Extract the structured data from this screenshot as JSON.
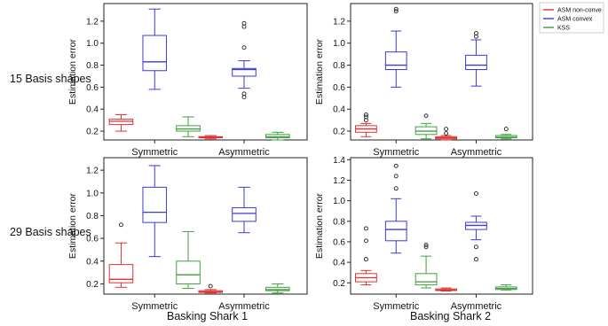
{
  "row_labels": [
    "15 Basis shapes",
    "29 Basis shapes"
  ],
  "col_labels": [
    "Basking Shark 1",
    "Basking Shark 2"
  ],
  "legend": [
    {
      "name": "ASM non-conve",
      "color": "#e03131"
    },
    {
      "name": "ASM convex",
      "color": "#3b3bd6"
    },
    {
      "name": "KSS",
      "color": "#40a040"
    }
  ],
  "chart_data": [
    {
      "type": "box",
      "panel": "15 Basis shapes / Basking Shark 1",
      "ylabel": "Estimation error",
      "ylim": [
        0.12,
        1.36
      ],
      "yticks": [
        "0.2",
        "0.4",
        "0.6",
        "0.8",
        "1.0",
        "1.2"
      ],
      "categories": [
        "Symmetric",
        "Asymmetric"
      ],
      "series": [
        {
          "name": "ASM non-conve",
          "boxes": [
            {
              "whislo": 0.2,
              "q1": 0.26,
              "med": 0.29,
              "q3": 0.31,
              "whishi": 0.35,
              "fliers": []
            },
            {
              "whislo": 0.13,
              "q1": 0.14,
              "med": 0.145,
              "q3": 0.15,
              "whishi": 0.16,
              "fliers": []
            }
          ]
        },
        {
          "name": "ASM convex",
          "boxes": [
            {
              "whislo": 0.58,
              "q1": 0.75,
              "med": 0.83,
              "q3": 1.07,
              "whishi": 1.31,
              "fliers": []
            },
            {
              "whislo": 0.59,
              "q1": 0.7,
              "med": 0.76,
              "q3": 0.77,
              "whishi": 0.84,
              "fliers": [
                0.51,
                0.54,
                0.96,
                1.15,
                1.18
              ]
            }
          ]
        },
        {
          "name": "KSS",
          "boxes": [
            {
              "whislo": 0.15,
              "q1": 0.2,
              "med": 0.22,
              "q3": 0.25,
              "whishi": 0.33,
              "fliers": []
            },
            {
              "whislo": 0.12,
              "q1": 0.14,
              "med": 0.15,
              "q3": 0.17,
              "whishi": 0.19,
              "fliers": []
            }
          ]
        }
      ]
    },
    {
      "type": "box",
      "panel": "15 Basis shapes / Basking Shark 2",
      "ylabel": "Estimation error",
      "ylim": [
        0.12,
        1.36
      ],
      "yticks": [
        "0.2",
        "0.4",
        "0.6",
        "0.8",
        "1.0",
        "1.2"
      ],
      "categories": [
        "Symmetric",
        "Asymmetric"
      ],
      "series": [
        {
          "name": "ASM non-conve",
          "boxes": [
            {
              "whislo": 0.15,
              "q1": 0.19,
              "med": 0.22,
              "q3": 0.25,
              "whishi": 0.27,
              "fliers": [
                0.3,
                0.33,
                0.35
              ]
            },
            {
              "whislo": 0.12,
              "q1": 0.13,
              "med": 0.14,
              "q3": 0.15,
              "whishi": 0.16,
              "fliers": [
                0.18,
                0.22
              ]
            }
          ]
        },
        {
          "name": "ASM convex",
          "boxes": [
            {
              "whislo": 0.6,
              "q1": 0.76,
              "med": 0.8,
              "q3": 0.92,
              "whishi": 1.11,
              "fliers": [
                1.29,
                1.31
              ]
            },
            {
              "whislo": 0.61,
              "q1": 0.76,
              "med": 0.8,
              "q3": 0.89,
              "whishi": 1.03,
              "fliers": [
                1.06,
                1.09
              ]
            }
          ]
        },
        {
          "name": "KSS",
          "boxes": [
            {
              "whislo": 0.13,
              "q1": 0.17,
              "med": 0.2,
              "q3": 0.24,
              "whishi": 0.27,
              "fliers": [
                0.34
              ]
            },
            {
              "whislo": 0.13,
              "q1": 0.14,
              "med": 0.145,
              "q3": 0.16,
              "whishi": 0.17,
              "fliers": [
                0.22
              ]
            }
          ]
        }
      ]
    },
    {
      "type": "box",
      "panel": "29 Basis shapes / Basking Shark 1",
      "ylabel": "Estimation error",
      "ylim": [
        0.11,
        1.31
      ],
      "yticks": [
        "0.2",
        "0.4",
        "0.6",
        "0.8",
        "1.0",
        "1.2"
      ],
      "categories": [
        "Symmetric",
        "Asymmetric"
      ],
      "series": [
        {
          "name": "ASM non-conve",
          "boxes": [
            {
              "whislo": 0.17,
              "q1": 0.21,
              "med": 0.24,
              "q3": 0.37,
              "whishi": 0.56,
              "fliers": [
                0.72
              ]
            },
            {
              "whislo": 0.12,
              "q1": 0.125,
              "med": 0.13,
              "q3": 0.14,
              "whishi": 0.15,
              "fliers": [
                0.18
              ]
            }
          ]
        },
        {
          "name": "ASM convex",
          "boxes": [
            {
              "whislo": 0.44,
              "q1": 0.74,
              "med": 0.83,
              "q3": 1.05,
              "whishi": 1.24,
              "fliers": []
            },
            {
              "whislo": 0.65,
              "q1": 0.75,
              "med": 0.82,
              "q3": 0.87,
              "whishi": 1.05,
              "fliers": []
            }
          ]
        },
        {
          "name": "KSS",
          "boxes": [
            {
              "whislo": 0.16,
              "q1": 0.2,
              "med": 0.28,
              "q3": 0.4,
              "whishi": 0.66,
              "fliers": []
            },
            {
              "whislo": 0.12,
              "q1": 0.14,
              "med": 0.15,
              "q3": 0.17,
              "whishi": 0.2,
              "fliers": []
            }
          ]
        }
      ]
    },
    {
      "type": "box",
      "panel": "29 Basis shapes / Basking Shark 2",
      "ylabel": "Estimation error",
      "ylim": [
        0.09,
        1.42
      ],
      "yticks": [
        "0.2",
        "0.4",
        "0.6",
        "0.8",
        "1.0",
        "1.2",
        "1.4"
      ],
      "categories": [
        "Symmetric",
        "Asymmetric"
      ],
      "series": [
        {
          "name": "ASM non-conve",
          "boxes": [
            {
              "whislo": 0.18,
              "q1": 0.21,
              "med": 0.25,
              "q3": 0.29,
              "whishi": 0.32,
              "fliers": [
                0.43,
                0.61,
                0.73
              ]
            },
            {
              "whislo": 0.12,
              "q1": 0.125,
              "med": 0.13,
              "q3": 0.14,
              "whishi": 0.15,
              "fliers": []
            }
          ]
        },
        {
          "name": "ASM convex",
          "boxes": [
            {
              "whislo": 0.49,
              "q1": 0.61,
              "med": 0.72,
              "q3": 0.8,
              "whishi": 1.02,
              "fliers": [
                1.12,
                1.24,
                1.34
              ]
            },
            {
              "whislo": 0.62,
              "q1": 0.72,
              "med": 0.76,
              "q3": 0.79,
              "whishi": 0.85,
              "fliers": [
                0.43,
                0.55,
                1.07
              ]
            }
          ]
        },
        {
          "name": "KSS",
          "boxes": [
            {
              "whislo": 0.15,
              "q1": 0.18,
              "med": 0.21,
              "q3": 0.29,
              "whishi": 0.46,
              "fliers": [
                0.55,
                0.57
              ]
            },
            {
              "whislo": 0.13,
              "q1": 0.135,
              "med": 0.145,
              "q3": 0.16,
              "whishi": 0.18,
              "fliers": []
            }
          ]
        }
      ]
    }
  ]
}
